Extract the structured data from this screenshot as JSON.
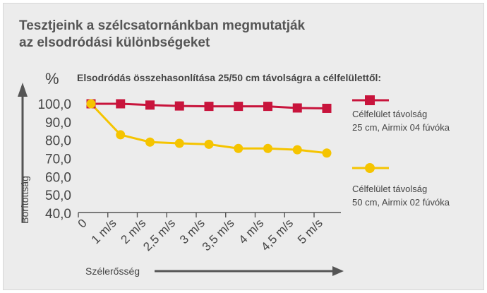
{
  "chart_data": {
    "type": "line",
    "title": [
      "Tesztjeink a szélcsatornánkban megmutatják",
      "az elsodródási különbségeket"
    ],
    "subtitle": "Elsodródás összehasonlítása 25/50 cm távolságra a célfelülettől:",
    "y_unit": "%",
    "ylabel": "Borítottság",
    "xlabel": "Szélerősség",
    "ylim": [
      40,
      100
    ],
    "y_ticks": [
      "100,0",
      "90,0",
      "80,0",
      "70,0",
      "60,0",
      "50,0",
      "40,0"
    ],
    "categories": [
      "0",
      "1 m/s",
      "2 m/s",
      "2,5 m/s",
      "3 m/s",
      "3,5 m/s",
      "4 m/s",
      "4,5 m/s",
      "5 m/s"
    ],
    "grid": false,
    "legend_position": "right",
    "series": [
      {
        "name": [
          "Célfelület távolság",
          "25 cm, Airmix 04 fúvóka"
        ],
        "color": "#c8143c",
        "marker": "square",
        "values": [
          100,
          100,
          99.3,
          98.8,
          98.6,
          98.6,
          98.6,
          97.7,
          97.5
        ]
      },
      {
        "name": [
          "Célfelület távolság",
          "50 cm, Airmix 02 fúvóka"
        ],
        "color": "#f5c400",
        "marker": "circle",
        "values": [
          100,
          83,
          79,
          78.3,
          77.8,
          75.5,
          75.5,
          74.8,
          73
        ]
      }
    ]
  }
}
